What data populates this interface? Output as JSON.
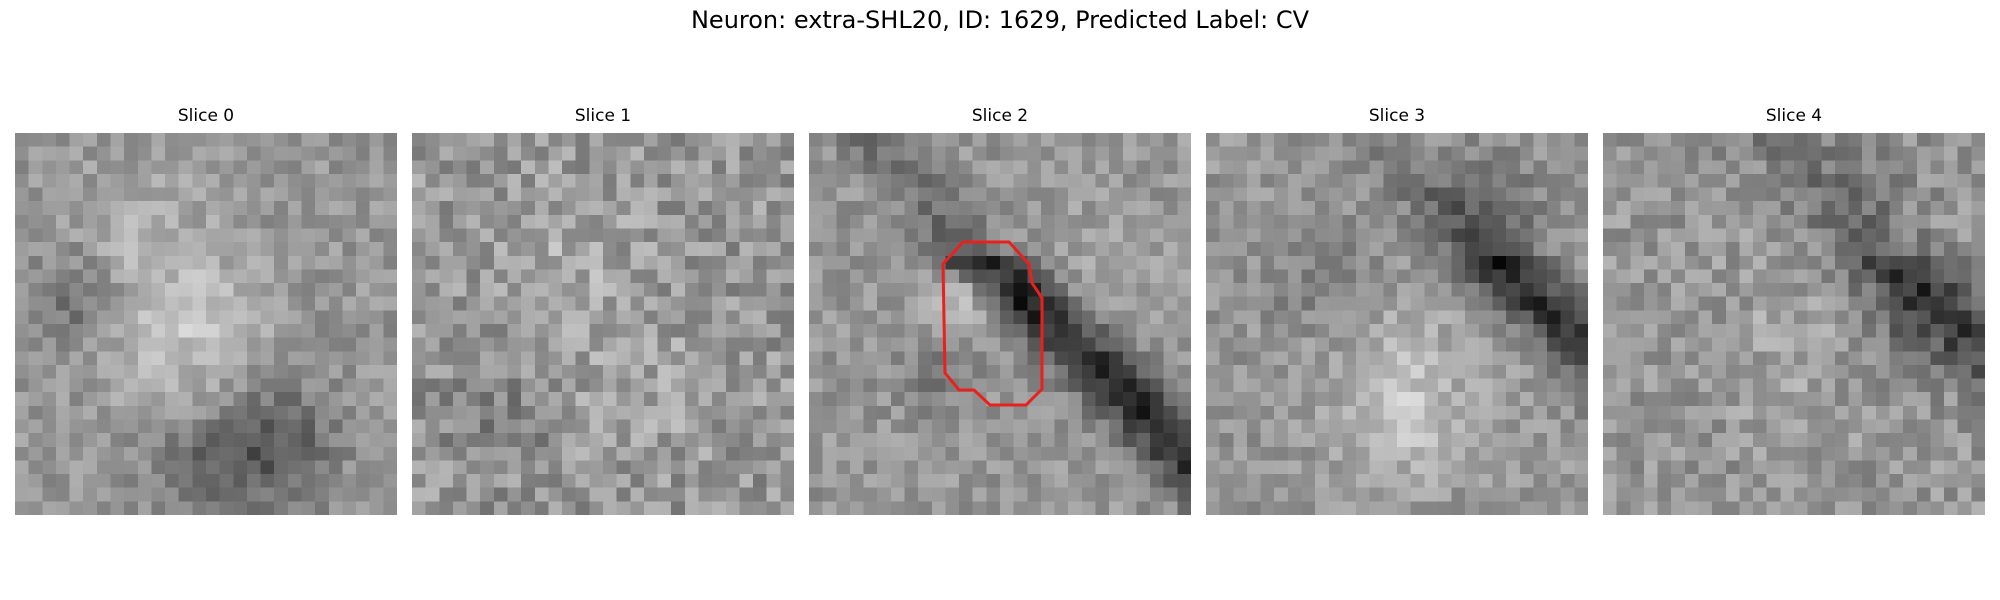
{
  "figure": {
    "title": "Neuron: extra-SHL20, ID: 1629, Predicted Label: CV"
  },
  "panels": [
    {
      "title": "Slice 0"
    },
    {
      "title": "Slice 1"
    },
    {
      "title": "Slice 2"
    },
    {
      "title": "Slice 3"
    },
    {
      "title": "Slice 4"
    }
  ],
  "roi": {
    "color": "#e8211f",
    "slice": "Slice 2"
  },
  "colormap": "gray"
}
